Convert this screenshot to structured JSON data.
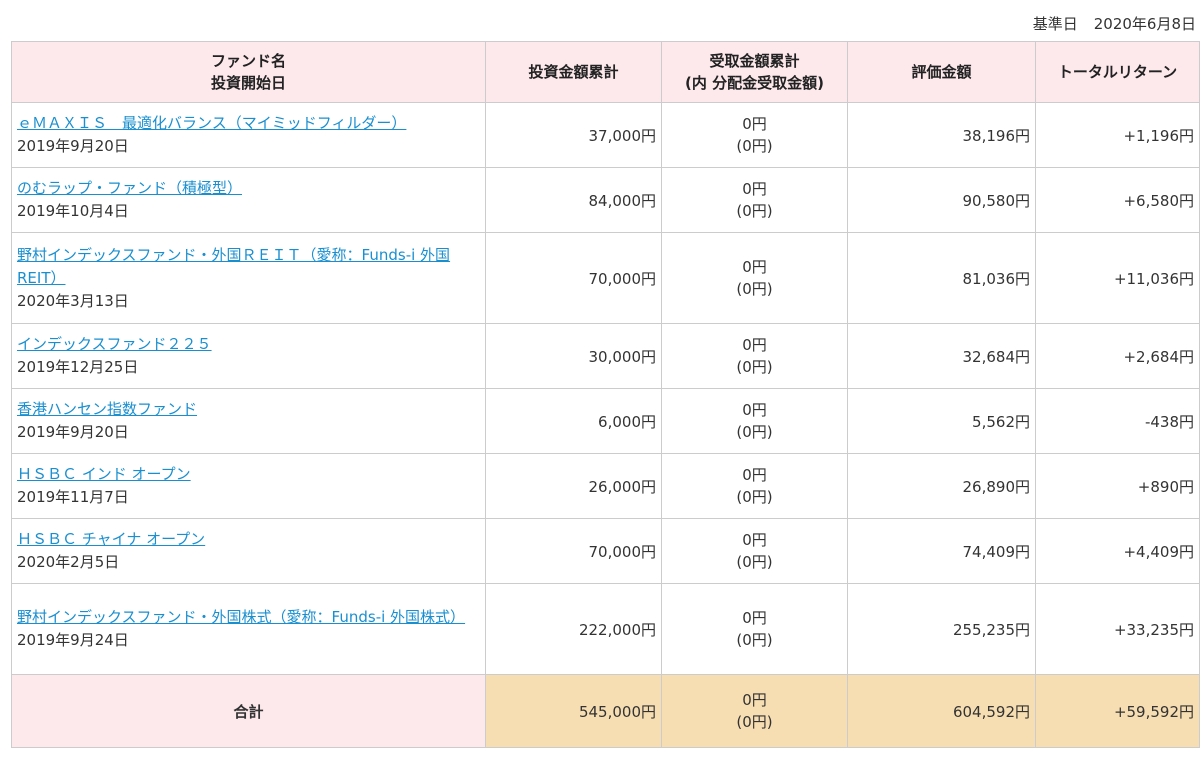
{
  "base_date": {
    "label": "基準日",
    "value": "2020年6月8日"
  },
  "headers": {
    "name_line1": "ファンド名",
    "name_line2": "投資開始日",
    "invested": "投資金額累計",
    "received_line1": "受取金額累計",
    "received_line2": "(内 分配金受取金額)",
    "valuation": "評価金額",
    "total_return": "トータルリターン"
  },
  "rows": [
    {
      "name": "ｅＭＡＸＩＳ　最適化バランス（マイミッドフィルダー）",
      "start": "2019年9月20日",
      "invested": "37,000円",
      "received": "0円",
      "distribution": "(0円)",
      "valuation": "38,196円",
      "return": "+1,196円"
    },
    {
      "name": "のむラップ・ファンド（積極型）",
      "start": "2019年10月4日",
      "invested": "84,000円",
      "received": "0円",
      "distribution": "(0円)",
      "valuation": "90,580円",
      "return": "+6,580円"
    },
    {
      "name": "野村インデックスファンド・外国ＲＥＩＴ（愛称：Funds-i 外国REIT）",
      "start": "2020年3月13日",
      "invested": "70,000円",
      "received": "0円",
      "distribution": "(0円)",
      "valuation": "81,036円",
      "return": "+11,036円"
    },
    {
      "name": "インデックスファンド２２５",
      "start": "2019年12月25日",
      "invested": "30,000円",
      "received": "0円",
      "distribution": "(0円)",
      "valuation": "32,684円",
      "return": "+2,684円"
    },
    {
      "name": "香港ハンセン指数ファンド",
      "start": "2019年9月20日",
      "invested": "6,000円",
      "received": "0円",
      "distribution": "(0円)",
      "valuation": "5,562円",
      "return": "-438円"
    },
    {
      "name": "ＨＳＢＣ インド オープン",
      "start": "2019年11月7日",
      "invested": "26,000円",
      "received": "0円",
      "distribution": "(0円)",
      "valuation": "26,890円",
      "return": "+890円"
    },
    {
      "name": "ＨＳＢＣ チャイナ オープン",
      "start": "2020年2月5日",
      "invested": "70,000円",
      "received": "0円",
      "distribution": "(0円)",
      "valuation": "74,409円",
      "return": "+4,409円"
    },
    {
      "name": "野村インデックスファンド・外国株式（愛称：Funds-i 外国株式）",
      "start": "2019年9月24日",
      "invested": "222,000円",
      "received": "0円",
      "distribution": "(0円)",
      "valuation": "255,235円",
      "return": "+33,235円"
    }
  ],
  "total": {
    "label": "合計",
    "invested": "545,000円",
    "received": "0円",
    "distribution": "(0円)",
    "valuation": "604,592円",
    "return": "+59,592円"
  },
  "colors": {
    "header_bg": "#fde9ec",
    "total_bg": "#f6deb2",
    "link": "#1a8fd0",
    "border": "#cccccc"
  }
}
